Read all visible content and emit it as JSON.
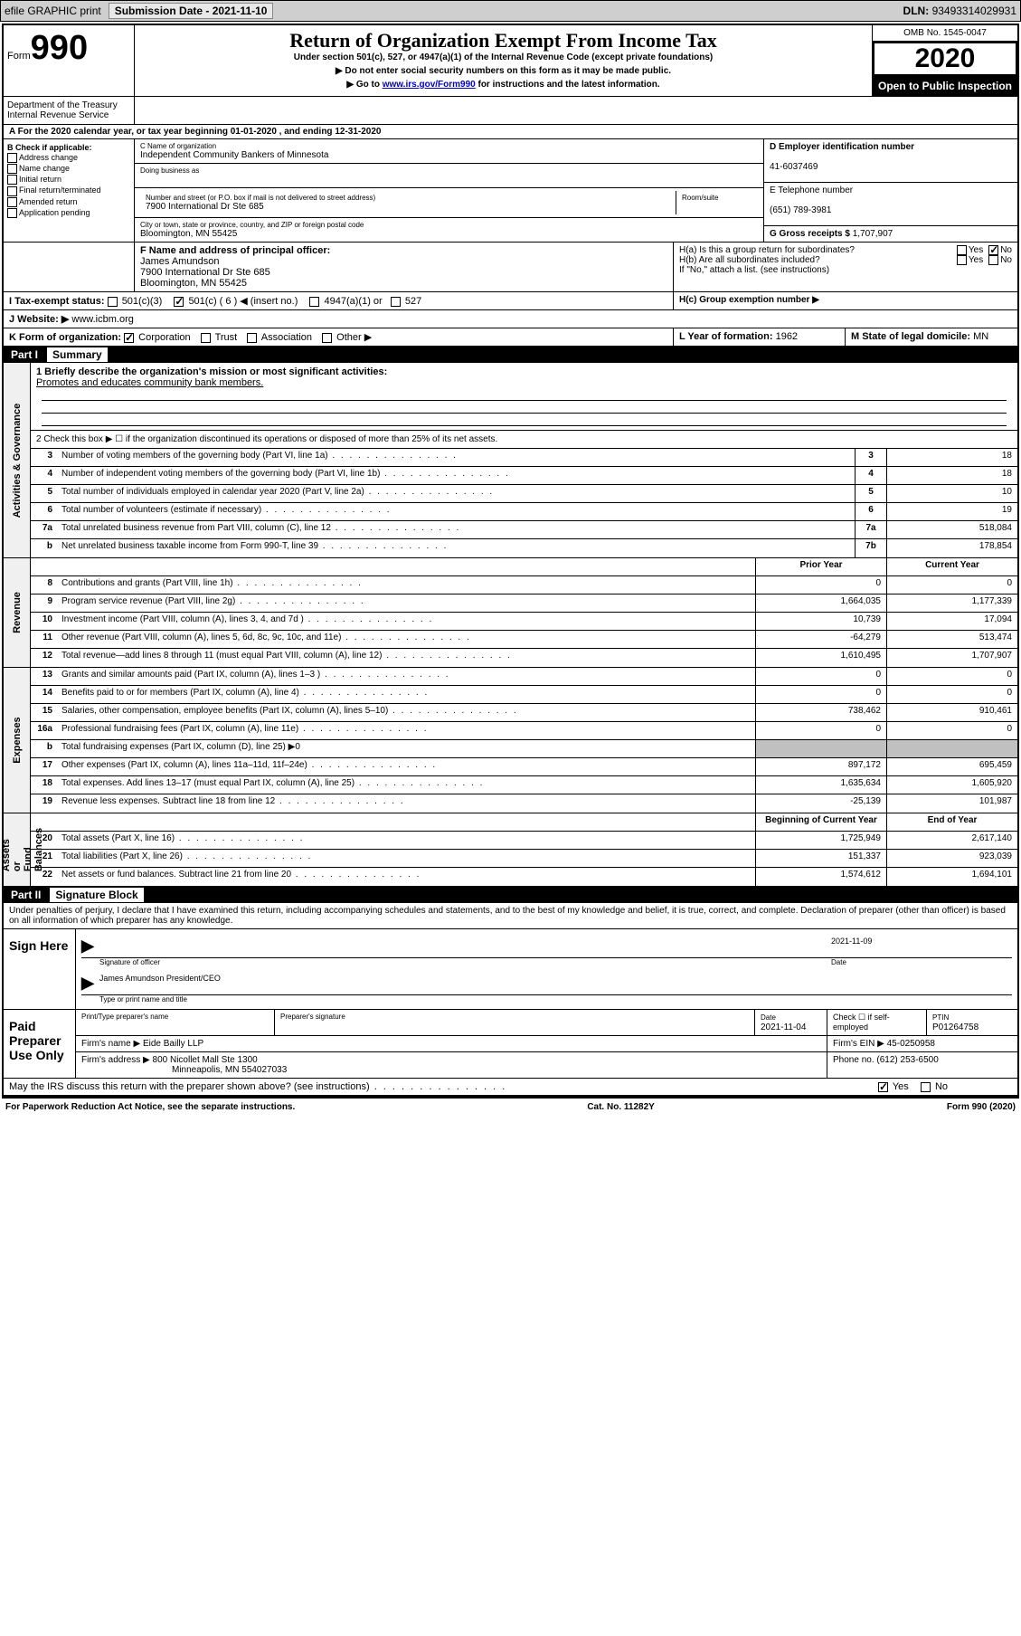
{
  "topbar": {
    "efile": "efile GRAPHIC print",
    "submission_label": "Submission Date",
    "submission_date": "2021-11-10",
    "dln_label": "DLN:",
    "dln": "93493314029931"
  },
  "header": {
    "form_label": "Form",
    "form_num": "990",
    "title": "Return of Organization Exempt From Income Tax",
    "sub1": "Under section 501(c), 527, or 4947(a)(1) of the Internal Revenue Code (except private foundations)",
    "sub2": "▶ Do not enter social security numbers on this form as it may be made public.",
    "sub3_pre": "▶ Go to ",
    "sub3_link": "www.irs.gov/Form990",
    "sub3_post": " for instructions and the latest information.",
    "omb": "OMB No. 1545-0047",
    "year": "2020",
    "open": "Open to Public Inspection",
    "dept": "Department of the Treasury\nInternal Revenue Service"
  },
  "rowA": "A For the 2020 calendar year, or tax year beginning 01-01-2020    , and ending 12-31-2020",
  "colB": {
    "label": "B Check if applicable:",
    "addr": "Address change",
    "name": "Name change",
    "init": "Initial return",
    "final": "Final return/terminated",
    "amend": "Amended return",
    "app": "Application pending"
  },
  "colC": {
    "name_label": "C Name of organization",
    "name": "Independent Community Bankers of Minnesota",
    "dba_label": "Doing business as",
    "addr_label": "Number and street (or P.O. box if mail is not delivered to street address)",
    "room_label": "Room/suite",
    "addr": "7900 International Dr Ste 685",
    "city_label": "City or town, state or province, country, and ZIP or foreign postal code",
    "city": "Bloomington, MN  55425"
  },
  "colD": {
    "label": "D Employer identification number",
    "val": "41-6037469"
  },
  "colE": {
    "label": "E Telephone number",
    "val": "(651) 789-3981"
  },
  "colG": {
    "label": "G Gross receipts $",
    "val": "1,707,907"
  },
  "rowF": {
    "label": "F  Name and address of principal officer:",
    "name": "James Amundson",
    "addr1": "7900 International Dr Ste 685",
    "addr2": "Bloomington, MN  55425"
  },
  "rowH": {
    "ha_label": "H(a)  Is this a group return for subordinates?",
    "hb_label": "H(b)  Are all subordinates included?",
    "hb_note": "If \"No,\" attach a list. (see instructions)",
    "hc_label": "H(c)  Group exemption number ▶",
    "yes": "Yes",
    "no": "No"
  },
  "rowI": {
    "label": "I  Tax-exempt status:",
    "c3": "501(c)(3)",
    "c": "501(c) ( 6 ) ◀ (insert no.)",
    "a1": "4947(a)(1) or",
    "s527": "527"
  },
  "rowJ": {
    "label": "J  Website: ▶",
    "val": "www.icbm.org"
  },
  "rowK": {
    "label": "K Form of organization:",
    "corp": "Corporation",
    "trust": "Trust",
    "assoc": "Association",
    "other": "Other ▶"
  },
  "rowL": {
    "label": "L Year of formation:",
    "val": "1962"
  },
  "rowM": {
    "label": "M State of legal domicile:",
    "val": "MN"
  },
  "part1": {
    "num": "Part I",
    "title": "Summary"
  },
  "summary": {
    "q1_label": "1  Briefly describe the organization's mission or most significant activities:",
    "q1_val": "Promotes and educates community bank members.",
    "q2": "2    Check this box ▶ ☐  if the organization discontinued its operations or disposed of more than 25% of its net assets.",
    "rows_gov": [
      {
        "n": "3",
        "t": "Number of voting members of the governing body (Part VI, line 1a)",
        "box": "3",
        "v": "18"
      },
      {
        "n": "4",
        "t": "Number of independent voting members of the governing body (Part VI, line 1b)",
        "box": "4",
        "v": "18"
      },
      {
        "n": "5",
        "t": "Total number of individuals employed in calendar year 2020 (Part V, line 2a)",
        "box": "5",
        "v": "10"
      },
      {
        "n": "6",
        "t": "Total number of volunteers (estimate if necessary)",
        "box": "6",
        "v": "19"
      },
      {
        "n": "7a",
        "t": "Total unrelated business revenue from Part VIII, column (C), line 12",
        "box": "7a",
        "v": "518,084"
      },
      {
        "n": "b",
        "t": "Net unrelated business taxable income from Form 990-T, line 39",
        "box": "7b",
        "v": "178,854"
      }
    ],
    "year_hdr": {
      "prior": "Prior Year",
      "curr": "Current Year"
    },
    "rows_rev": [
      {
        "n": "8",
        "t": "Contributions and grants (Part VIII, line 1h)",
        "p": "0",
        "c": "0"
      },
      {
        "n": "9",
        "t": "Program service revenue (Part VIII, line 2g)",
        "p": "1,664,035",
        "c": "1,177,339"
      },
      {
        "n": "10",
        "t": "Investment income (Part VIII, column (A), lines 3, 4, and 7d )",
        "p": "10,739",
        "c": "17,094"
      },
      {
        "n": "11",
        "t": "Other revenue (Part VIII, column (A), lines 5, 6d, 8c, 9c, 10c, and 11e)",
        "p": "-64,279",
        "c": "513,474"
      },
      {
        "n": "12",
        "t": "Total revenue—add lines 8 through 11 (must equal Part VIII, column (A), line 12)",
        "p": "1,610,495",
        "c": "1,707,907"
      }
    ],
    "rows_exp": [
      {
        "n": "13",
        "t": "Grants and similar amounts paid (Part IX, column (A), lines 1–3 )",
        "p": "0",
        "c": "0"
      },
      {
        "n": "14",
        "t": "Benefits paid to or for members (Part IX, column (A), line 4)",
        "p": "0",
        "c": "0"
      },
      {
        "n": "15",
        "t": "Salaries, other compensation, employee benefits (Part IX, column (A), lines 5–10)",
        "p": "738,462",
        "c": "910,461"
      },
      {
        "n": "16a",
        "t": "Professional fundraising fees (Part IX, column (A), line 11e)",
        "p": "0",
        "c": "0"
      },
      {
        "n": "b",
        "t": "Total fundraising expenses (Part IX, column (D), line 25) ▶0",
        "p": "",
        "c": "",
        "shaded": true
      },
      {
        "n": "17",
        "t": "Other expenses (Part IX, column (A), lines 11a–11d, 11f–24e)",
        "p": "897,172",
        "c": "695,459"
      },
      {
        "n": "18",
        "t": "Total expenses. Add lines 13–17 (must equal Part IX, column (A), line 25)",
        "p": "1,635,634",
        "c": "1,605,920"
      },
      {
        "n": "19",
        "t": "Revenue less expenses. Subtract line 18 from line 12",
        "p": "-25,139",
        "c": "101,987"
      }
    ],
    "net_hdr": {
      "beg": "Beginning of Current Year",
      "end": "End of Year"
    },
    "rows_net": [
      {
        "n": "20",
        "t": "Total assets (Part X, line 16)",
        "p": "1,725,949",
        "c": "2,617,140"
      },
      {
        "n": "21",
        "t": "Total liabilities (Part X, line 26)",
        "p": "151,337",
        "c": "923,039"
      },
      {
        "n": "22",
        "t": "Net assets or fund balances. Subtract line 21 from line 20",
        "p": "1,574,612",
        "c": "1,694,101"
      }
    ],
    "labels": {
      "gov": "Activities & Governance",
      "rev": "Revenue",
      "exp": "Expenses",
      "net": "Net Assets or\nFund Balances"
    }
  },
  "part2": {
    "num": "Part II",
    "title": "Signature Block"
  },
  "sig": {
    "perjury": "Under penalties of perjury, I declare that I have examined this return, including accompanying schedules and statements, and to the best of my knowledge and belief, it is true, correct, and complete. Declaration of preparer (other than officer) is based on all information of which preparer has any knowledge.",
    "sign_here": "Sign Here",
    "sig_officer": "Signature of officer",
    "date_label": "Date",
    "date": "2021-11-09",
    "name_title": "James Amundson  President/CEO",
    "type_label": "Type or print name and title"
  },
  "prep": {
    "label": "Paid Preparer Use Only",
    "print_label": "Print/Type preparer's name",
    "sig_label": "Preparer's signature",
    "date_label": "Date",
    "date": "2021-11-04",
    "check_label": "Check ☐ if self-employed",
    "ptin_label": "PTIN",
    "ptin": "P01264758",
    "firm_name_label": "Firm's name    ▶",
    "firm_name": "Eide Bailly LLP",
    "firm_ein_label": "Firm's EIN ▶",
    "firm_ein": "45-0250958",
    "firm_addr_label": "Firm's address ▶",
    "firm_addr1": "800 Nicollet Mall Ste 1300",
    "firm_addr2": "Minneapolis, MN  554027033",
    "phone_label": "Phone no.",
    "phone": "(612) 253-6500"
  },
  "discuss": {
    "q": "May the IRS discuss this return with the preparer shown above? (see instructions)",
    "yes": "Yes",
    "no": "No"
  },
  "footer": {
    "left": "For Paperwork Reduction Act Notice, see the separate instructions.",
    "mid": "Cat. No. 11282Y",
    "right": "Form 990 (2020)"
  }
}
